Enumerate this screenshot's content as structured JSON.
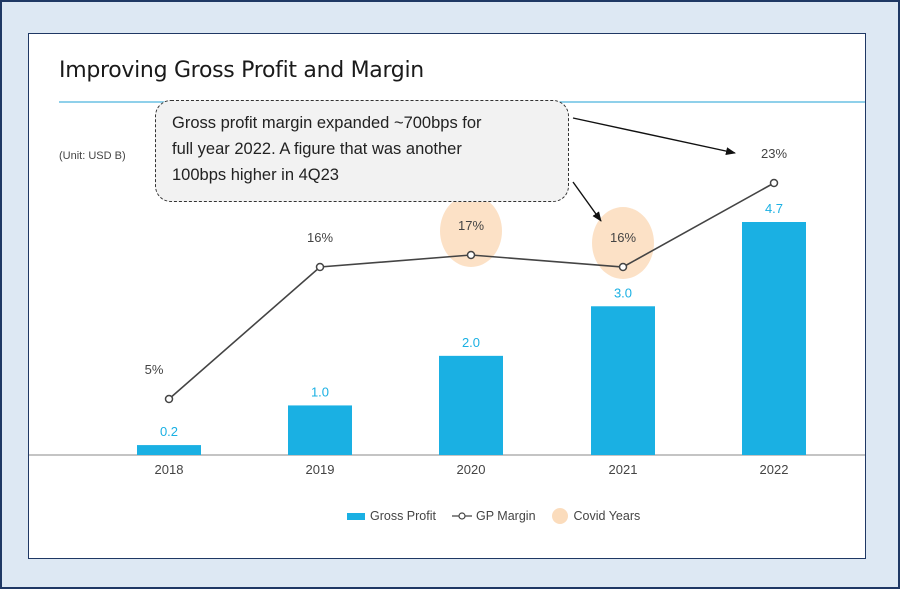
{
  "title": "Improving Gross Profit and Margin",
  "unit_label": "(Unit: USD B)",
  "callout": {
    "lines": [
      "Gross profit margin expanded ~700bps for",
      "full year 2022. A figure that was another",
      "100bps higher in 4Q23"
    ]
  },
  "legend": {
    "gross_profit": "Gross Profit",
    "gp_margin": "GP Margin",
    "covid": "Covid Years"
  },
  "colors": {
    "bar": "#1ab0e3",
    "line": "#444444",
    "covid_highlight": "#fbdcbc",
    "frame": "#1f3864",
    "frame_bg": "#dde8f3"
  },
  "chart_data": {
    "type": "bar",
    "title": "Improving Gross Profit and Margin",
    "categories": [
      "2018",
      "2019",
      "2020",
      "2021",
      "2022"
    ],
    "series": [
      {
        "name": "Gross Profit",
        "type": "bar",
        "values": [
          0.2,
          1.0,
          2.0,
          3.0,
          4.7
        ],
        "labels": [
          "0.2",
          "1.0",
          "2.0",
          "3.0",
          "4.7"
        ]
      },
      {
        "name": "GP Margin",
        "type": "line",
        "values": [
          5,
          16,
          17,
          16,
          23
        ],
        "labels": [
          "5%",
          "16%",
          "17%",
          "16%",
          "23%"
        ]
      }
    ],
    "highlighted_categories": [
      "2020",
      "2021"
    ],
    "highlight_legend": "Covid Years",
    "legend_position": "bottom",
    "grid": false
  }
}
